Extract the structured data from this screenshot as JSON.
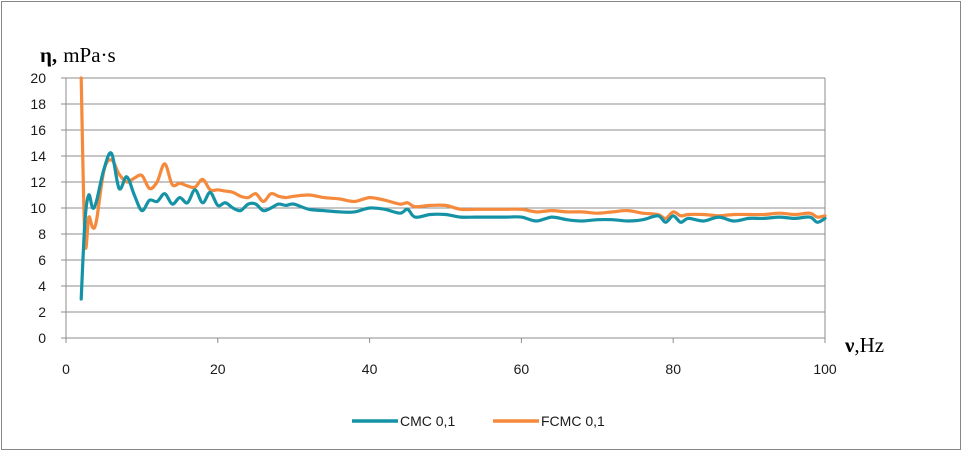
{
  "chart_data": {
    "type": "line",
    "ylabel_symbol": "η,",
    "ylabel_unit": "mPa·s",
    "xlabel_symbol": "ν",
    "xlabel_unit": ",Hz",
    "xlim": [
      0,
      100
    ],
    "ylim": [
      0,
      20
    ],
    "x_ticks": [
      0,
      20,
      40,
      60,
      80,
      100
    ],
    "y_ticks": [
      0,
      2,
      4,
      6,
      8,
      10,
      12,
      14,
      16,
      18,
      20
    ],
    "grid": "horizontal",
    "legend_position": "bottom",
    "series": [
      {
        "name": "CMC 0,1",
        "color": "#1592a6",
        "x": [
          2,
          2.5,
          3,
          3.5,
          4,
          5,
          6,
          7,
          8,
          9,
          10,
          11,
          12,
          13,
          14,
          15,
          16,
          17,
          18,
          19,
          20,
          21,
          22,
          23,
          24,
          25,
          26,
          27,
          28,
          29,
          30,
          32,
          34,
          36,
          38,
          40,
          42,
          44,
          45,
          46,
          48,
          50,
          52,
          54,
          56,
          58,
          60,
          62,
          64,
          66,
          68,
          70,
          72,
          74,
          76,
          78,
          79,
          80,
          81,
          82,
          84,
          86,
          88,
          90,
          92,
          94,
          96,
          98,
          99,
          100
        ],
        "y": [
          3.0,
          9.0,
          11.0,
          10.0,
          10.5,
          13.0,
          14.2,
          11.5,
          12.4,
          11.0,
          9.8,
          10.6,
          10.5,
          11.1,
          10.3,
          10.8,
          10.4,
          11.4,
          10.4,
          11.2,
          10.2,
          10.4,
          10.0,
          9.8,
          10.3,
          10.3,
          9.8,
          10.0,
          10.3,
          10.2,
          10.3,
          9.9,
          9.8,
          9.7,
          9.7,
          10.0,
          9.9,
          9.6,
          9.9,
          9.3,
          9.5,
          9.5,
          9.3,
          9.3,
          9.3,
          9.3,
          9.3,
          9.0,
          9.3,
          9.1,
          9.0,
          9.1,
          9.1,
          9.0,
          9.1,
          9.4,
          8.9,
          9.4,
          8.9,
          9.2,
          9.0,
          9.3,
          9.0,
          9.2,
          9.2,
          9.3,
          9.2,
          9.3,
          8.9,
          9.2
        ]
      },
      {
        "name": "FCMC 0,1",
        "color": "#f58a3c",
        "x": [
          2,
          2.5,
          3,
          3.5,
          4,
          5,
          6,
          7,
          8,
          9,
          10,
          11,
          12,
          13,
          14,
          15,
          16,
          17,
          18,
          19,
          20,
          21,
          22,
          23,
          24,
          25,
          26,
          27,
          28,
          29,
          30,
          32,
          34,
          36,
          38,
          40,
          42,
          44,
          45,
          46,
          48,
          50,
          52,
          54,
          56,
          58,
          60,
          62,
          64,
          66,
          68,
          70,
          72,
          74,
          76,
          78,
          79,
          80,
          81,
          82,
          84,
          86,
          88,
          90,
          92,
          94,
          96,
          98,
          99,
          100
        ],
        "y": [
          20.0,
          7.4,
          9.3,
          8.5,
          9.0,
          12.9,
          13.7,
          12.6,
          12.0,
          12.3,
          12.5,
          11.5,
          12.0,
          13.4,
          11.8,
          11.9,
          11.7,
          11.6,
          12.2,
          11.4,
          11.4,
          11.3,
          11.2,
          10.9,
          10.8,
          11.1,
          10.5,
          11.1,
          10.9,
          10.8,
          10.9,
          11.0,
          10.8,
          10.7,
          10.5,
          10.8,
          10.6,
          10.3,
          10.4,
          10.1,
          10.2,
          10.2,
          9.9,
          9.9,
          9.9,
          9.9,
          9.9,
          9.7,
          9.8,
          9.7,
          9.7,
          9.6,
          9.7,
          9.8,
          9.6,
          9.5,
          9.2,
          9.7,
          9.4,
          9.5,
          9.5,
          9.4,
          9.5,
          9.5,
          9.5,
          9.6,
          9.5,
          9.6,
          9.3,
          9.4
        ]
      }
    ]
  }
}
